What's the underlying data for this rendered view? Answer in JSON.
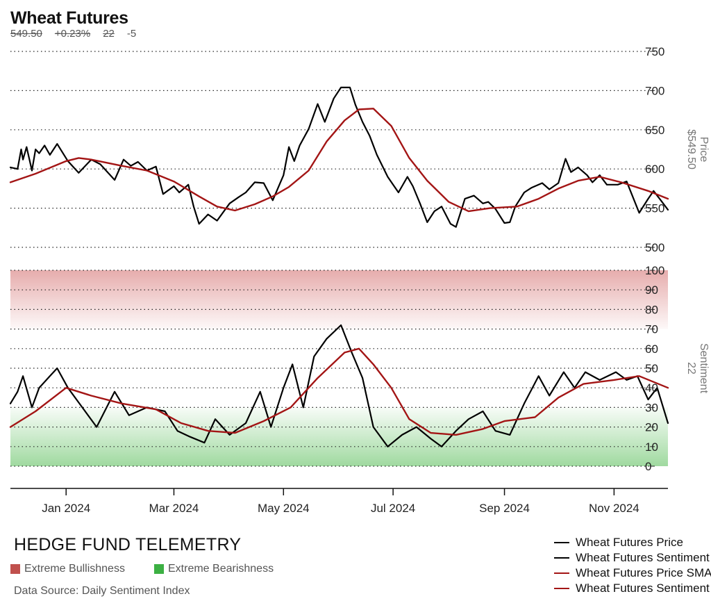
{
  "header": {
    "title": "Wheat Futures",
    "price": "549.50",
    "change": "+0.23%",
    "sentiment": "22",
    "sentiment_change": "-5"
  },
  "footer": {
    "brand": "HEDGE FUND TELEMETRY",
    "zone_bull_label": "Extreme Bullishness",
    "zone_bear_label": "Extreme Bearishness",
    "source": "Data Source: Daily Sentiment Index"
  },
  "colors": {
    "price_line": "#000000",
    "sma_line": "#a31515",
    "bull_zone": "#d98080",
    "bear_zone": "#6cc56c",
    "bull_swatch": "#c0504d",
    "bear_swatch": "#3cb043"
  },
  "chart_data": [
    {
      "type": "line",
      "panel": "price",
      "ylabel": "Price",
      "ylabel_value": "$549.50",
      "ylim": [
        490,
        760
      ],
      "yticks": [
        500,
        550,
        600,
        650,
        700,
        750
      ],
      "grid": true,
      "y_axis_side": "right",
      "x_ticks": [
        "Jan 2024",
        "Mar 2024",
        "May 2024",
        "Jul 2024",
        "Sep 2024",
        "Nov 2024"
      ],
      "series": [
        {
          "name": "Wheat Futures Price",
          "color": "black",
          "points": [
            [
              "2023-12-01",
              602
            ],
            [
              "2023-12-05",
              600
            ],
            [
              "2023-12-07",
              625
            ],
            [
              "2023-12-08",
              612
            ],
            [
              "2023-12-10",
              628
            ],
            [
              "2023-12-13",
              598
            ],
            [
              "2023-12-15",
              625
            ],
            [
              "2023-12-17",
              620
            ],
            [
              "2023-12-20",
              630
            ],
            [
              "2023-12-23",
              618
            ],
            [
              "2023-12-27",
              632
            ],
            [
              "2024-01-02",
              610
            ],
            [
              "2024-01-08",
              595
            ],
            [
              "2024-01-15",
              612
            ],
            [
              "2024-01-20",
              606
            ],
            [
              "2024-01-28",
              586
            ],
            [
              "2024-02-02",
              612
            ],
            [
              "2024-02-06",
              604
            ],
            [
              "2024-02-10",
              609
            ],
            [
              "2024-02-15",
              598
            ],
            [
              "2024-02-20",
              603
            ],
            [
              "2024-02-24",
              568
            ],
            [
              "2024-03-01",
              578
            ],
            [
              "2024-03-04",
              570
            ],
            [
              "2024-03-09",
              580
            ],
            [
              "2024-03-12",
              552
            ],
            [
              "2024-03-15",
              530
            ],
            [
              "2024-03-20",
              542
            ],
            [
              "2024-03-25",
              534
            ],
            [
              "2024-04-01",
              556
            ],
            [
              "2024-04-06",
              564
            ],
            [
              "2024-04-10",
              570
            ],
            [
              "2024-04-15",
              583
            ],
            [
              "2024-04-20",
              582
            ],
            [
              "2024-04-25",
              560
            ],
            [
              "2024-05-01",
              592
            ],
            [
              "2024-05-04",
              628
            ],
            [
              "2024-05-07",
              610
            ],
            [
              "2024-05-10",
              630
            ],
            [
              "2024-05-15",
              651
            ],
            [
              "2024-05-20",
              683
            ],
            [
              "2024-05-24",
              660
            ],
            [
              "2024-05-29",
              690
            ],
            [
              "2024-06-02",
              704
            ],
            [
              "2024-06-07",
              704
            ],
            [
              "2024-06-10",
              682
            ],
            [
              "2024-06-14",
              660
            ],
            [
              "2024-06-18",
              642
            ],
            [
              "2024-06-22",
              618
            ],
            [
              "2024-06-28",
              590
            ],
            [
              "2024-07-01",
              580
            ],
            [
              "2024-07-04",
              570
            ],
            [
              "2024-07-09",
              590
            ],
            [
              "2024-07-12",
              578
            ],
            [
              "2024-07-16",
              556
            ],
            [
              "2024-07-20",
              532
            ],
            [
              "2024-07-24",
              546
            ],
            [
              "2024-07-28",
              552
            ],
            [
              "2024-08-02",
              530
            ],
            [
              "2024-08-05",
              526
            ],
            [
              "2024-08-10",
              562
            ],
            [
              "2024-08-15",
              566
            ],
            [
              "2024-08-20",
              556
            ],
            [
              "2024-08-23",
              558
            ],
            [
              "2024-08-27",
              549
            ],
            [
              "2024-09-01",
              531
            ],
            [
              "2024-09-04",
              532
            ],
            [
              "2024-09-07",
              552
            ],
            [
              "2024-09-12",
              570
            ],
            [
              "2024-09-16",
              576
            ],
            [
              "2024-09-22",
              582
            ],
            [
              "2024-09-26",
              574
            ],
            [
              "2024-10-01",
              582
            ],
            [
              "2024-10-05",
              613
            ],
            [
              "2024-10-08",
              596
            ],
            [
              "2024-10-12",
              602
            ],
            [
              "2024-10-17",
              592
            ],
            [
              "2024-10-20",
              583
            ],
            [
              "2024-10-24",
              592
            ],
            [
              "2024-10-28",
              580
            ],
            [
              "2024-11-03",
              580
            ],
            [
              "2024-11-08",
              584
            ],
            [
              "2024-11-15",
              544
            ],
            [
              "2024-11-20",
              562
            ],
            [
              "2024-11-23",
              572
            ],
            [
              "2024-11-27",
              560
            ],
            [
              "2024-12-01",
              548
            ]
          ]
        },
        {
          "name": "Wheat Futures Price SMA",
          "color": "darkred",
          "points": [
            [
              "2023-12-01",
              583
            ],
            [
              "2023-12-15",
              594
            ],
            [
              "2024-01-01",
              610
            ],
            [
              "2024-01-08",
              614
            ],
            [
              "2024-01-15",
              612
            ],
            [
              "2024-02-01",
              604
            ],
            [
              "2024-02-15",
              598
            ],
            [
              "2024-03-01",
              584
            ],
            [
              "2024-03-15",
              565
            ],
            [
              "2024-03-25",
              552
            ],
            [
              "2024-04-04",
              547
            ],
            [
              "2024-04-15",
              555
            ],
            [
              "2024-04-25",
              565
            ],
            [
              "2024-05-04",
              577
            ],
            [
              "2024-05-15",
              598
            ],
            [
              "2024-05-25",
              635
            ],
            [
              "2024-06-04",
              662
            ],
            [
              "2024-06-12",
              676
            ],
            [
              "2024-06-20",
              677
            ],
            [
              "2024-06-30",
              655
            ],
            [
              "2024-07-10",
              614
            ],
            [
              "2024-07-20",
              585
            ],
            [
              "2024-08-01",
              558
            ],
            [
              "2024-08-12",
              546
            ],
            [
              "2024-08-24",
              550
            ],
            [
              "2024-09-08",
              552
            ],
            [
              "2024-09-20",
              562
            ],
            [
              "2024-10-01",
              575
            ],
            [
              "2024-10-12",
              585
            ],
            [
              "2024-10-24",
              590
            ],
            [
              "2024-11-05",
              583
            ],
            [
              "2024-11-20",
              572
            ],
            [
              "2024-12-01",
              562
            ]
          ]
        }
      ]
    },
    {
      "type": "line",
      "panel": "sentiment",
      "ylabel": "Sentiment",
      "ylabel_value": "22",
      "ylim": [
        -10,
        100
      ],
      "yticks": [
        0,
        10,
        20,
        30,
        40,
        50,
        60,
        70,
        80,
        90,
        100
      ],
      "zones": [
        {
          "name": "Extreme Bullishness",
          "from": 70,
          "to": 100
        },
        {
          "name": "Extreme Bearishness",
          "from": 0,
          "to": 30
        }
      ],
      "grid": true,
      "y_axis_side": "right",
      "series": [
        {
          "name": "Wheat Futures Sentiment",
          "color": "black",
          "points": [
            [
              "2023-12-01",
              32
            ],
            [
              "2023-12-05",
              38
            ],
            [
              "2023-12-08",
              46
            ],
            [
              "2023-12-13",
              30
            ],
            [
              "2023-12-17",
              40
            ],
            [
              "2023-12-23",
              46
            ],
            [
              "2023-12-27",
              50
            ],
            [
              "2024-01-02",
              40
            ],
            [
              "2024-01-10",
              30
            ],
            [
              "2024-01-18",
              20
            ],
            [
              "2024-01-28",
              38
            ],
            [
              "2024-02-05",
              26
            ],
            [
              "2024-02-15",
              30
            ],
            [
              "2024-02-25",
              28
            ],
            [
              "2024-03-03",
              18
            ],
            [
              "2024-03-10",
              15
            ],
            [
              "2024-03-18",
              12
            ],
            [
              "2024-03-24",
              24
            ],
            [
              "2024-04-01",
              16
            ],
            [
              "2024-04-10",
              22
            ],
            [
              "2024-04-18",
              38
            ],
            [
              "2024-04-24",
              20
            ],
            [
              "2024-05-01",
              40
            ],
            [
              "2024-05-06",
              52
            ],
            [
              "2024-05-12",
              30
            ],
            [
              "2024-05-18",
              56
            ],
            [
              "2024-05-25",
              65
            ],
            [
              "2024-06-02",
              72
            ],
            [
              "2024-06-08",
              58
            ],
            [
              "2024-06-14",
              45
            ],
            [
              "2024-06-20",
              20
            ],
            [
              "2024-06-28",
              10
            ],
            [
              "2024-07-06",
              16
            ],
            [
              "2024-07-14",
              20
            ],
            [
              "2024-07-22",
              14
            ],
            [
              "2024-07-28",
              10
            ],
            [
              "2024-08-05",
              18
            ],
            [
              "2024-08-12",
              24
            ],
            [
              "2024-08-20",
              28
            ],
            [
              "2024-08-27",
              18
            ],
            [
              "2024-09-04",
              16
            ],
            [
              "2024-09-12",
              32
            ],
            [
              "2024-09-20",
              46
            ],
            [
              "2024-09-26",
              36
            ],
            [
              "2024-10-04",
              48
            ],
            [
              "2024-10-10",
              40
            ],
            [
              "2024-10-16",
              48
            ],
            [
              "2024-10-24",
              44
            ],
            [
              "2024-11-02",
              48
            ],
            [
              "2024-11-08",
              44
            ],
            [
              "2024-11-14",
              46
            ],
            [
              "2024-11-20",
              34
            ],
            [
              "2024-11-25",
              40
            ],
            [
              "2024-12-01",
              22
            ]
          ]
        },
        {
          "name": "Wheat Futures Sentiment SMA",
          "color": "darkred",
          "points": [
            [
              "2023-12-01",
              20
            ],
            [
              "2023-12-15",
              28
            ],
            [
              "2024-01-01",
              40
            ],
            [
              "2024-01-15",
              36
            ],
            [
              "2024-02-01",
              32
            ],
            [
              "2024-02-20",
              29
            ],
            [
              "2024-03-05",
              22
            ],
            [
              "2024-03-20",
              18
            ],
            [
              "2024-04-04",
              17
            ],
            [
              "2024-04-20",
              23
            ],
            [
              "2024-05-05",
              30
            ],
            [
              "2024-05-20",
              45
            ],
            [
              "2024-06-04",
              58
            ],
            [
              "2024-06-12",
              60
            ],
            [
              "2024-06-20",
              52
            ],
            [
              "2024-06-30",
              40
            ],
            [
              "2024-07-10",
              24
            ],
            [
              "2024-07-22",
              17
            ],
            [
              "2024-08-05",
              16
            ],
            [
              "2024-08-20",
              19
            ],
            [
              "2024-09-01",
              23
            ],
            [
              "2024-09-18",
              25
            ],
            [
              "2024-10-01",
              35
            ],
            [
              "2024-10-15",
              42
            ],
            [
              "2024-11-01",
              44
            ],
            [
              "2024-11-15",
              46
            ],
            [
              "2024-12-01",
              40
            ]
          ]
        }
      ]
    }
  ],
  "legend": [
    "Wheat Futures Price",
    "Wheat Futures Sentiment",
    "Wheat Futures Price SMA",
    "Wheat Futures Sentiment SMA"
  ]
}
